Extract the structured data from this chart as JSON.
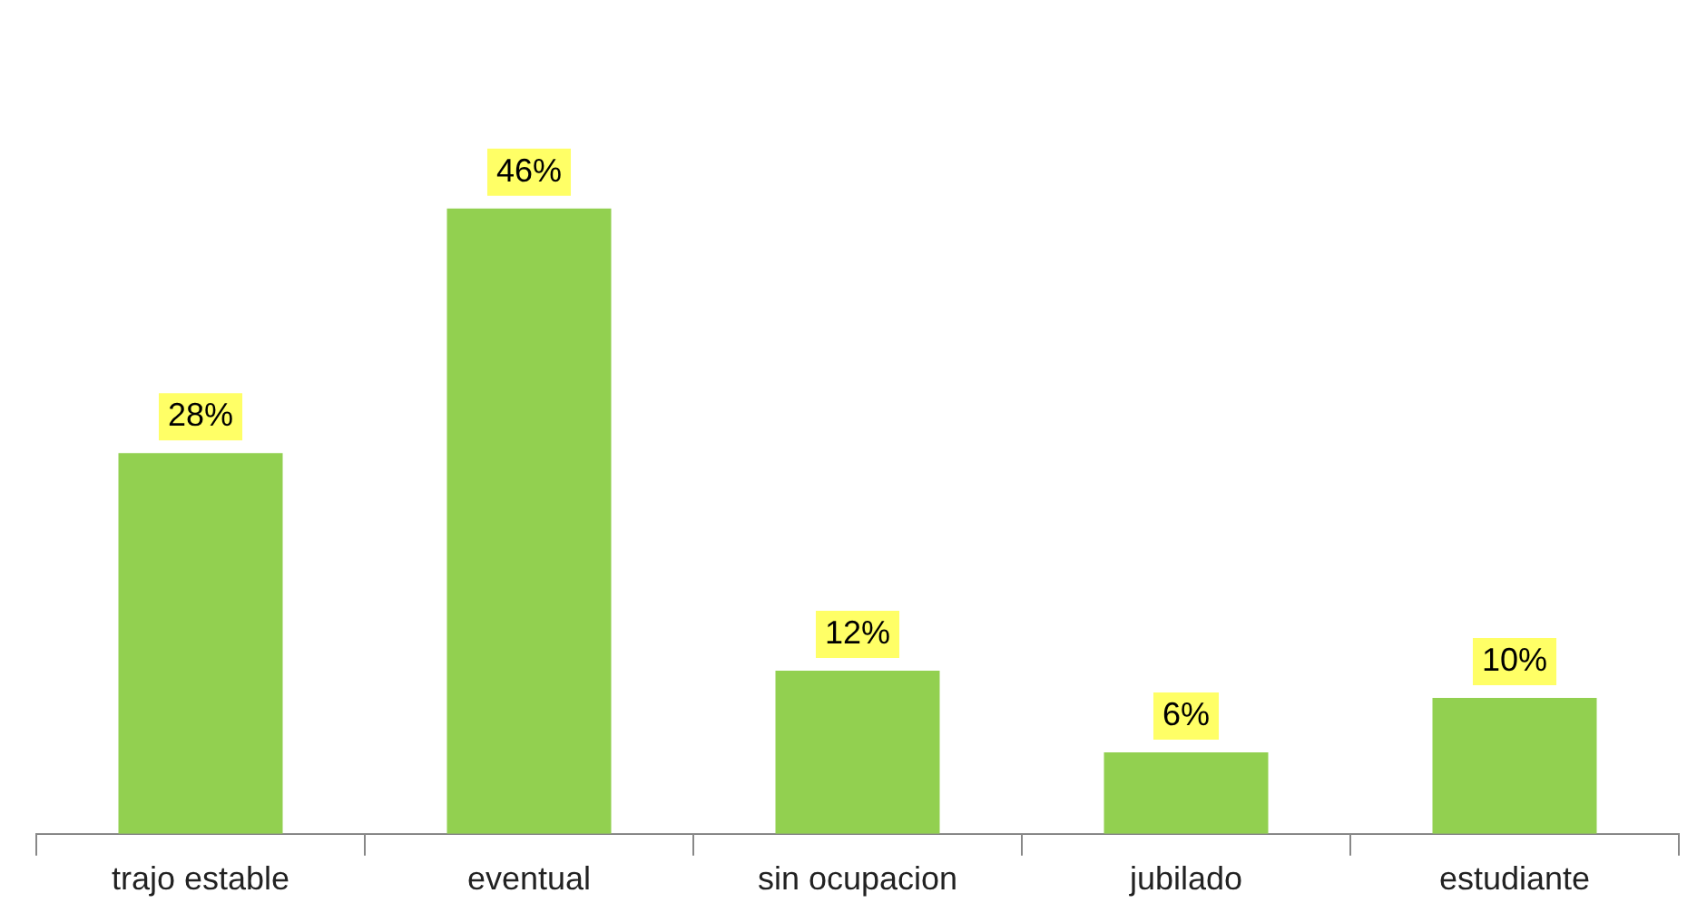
{
  "chart_data": {
    "type": "bar",
    "categories": [
      "trajo estable",
      "eventual",
      "sin ocupacion",
      "jubilado",
      "estudiante"
    ],
    "values": [
      28,
      46,
      12,
      6,
      10
    ],
    "value_labels": [
      "28%",
      "46%",
      "12%",
      "6%",
      "10%"
    ],
    "color": "#92d050",
    "relative": false,
    "grid": false,
    "legend": false
  }
}
